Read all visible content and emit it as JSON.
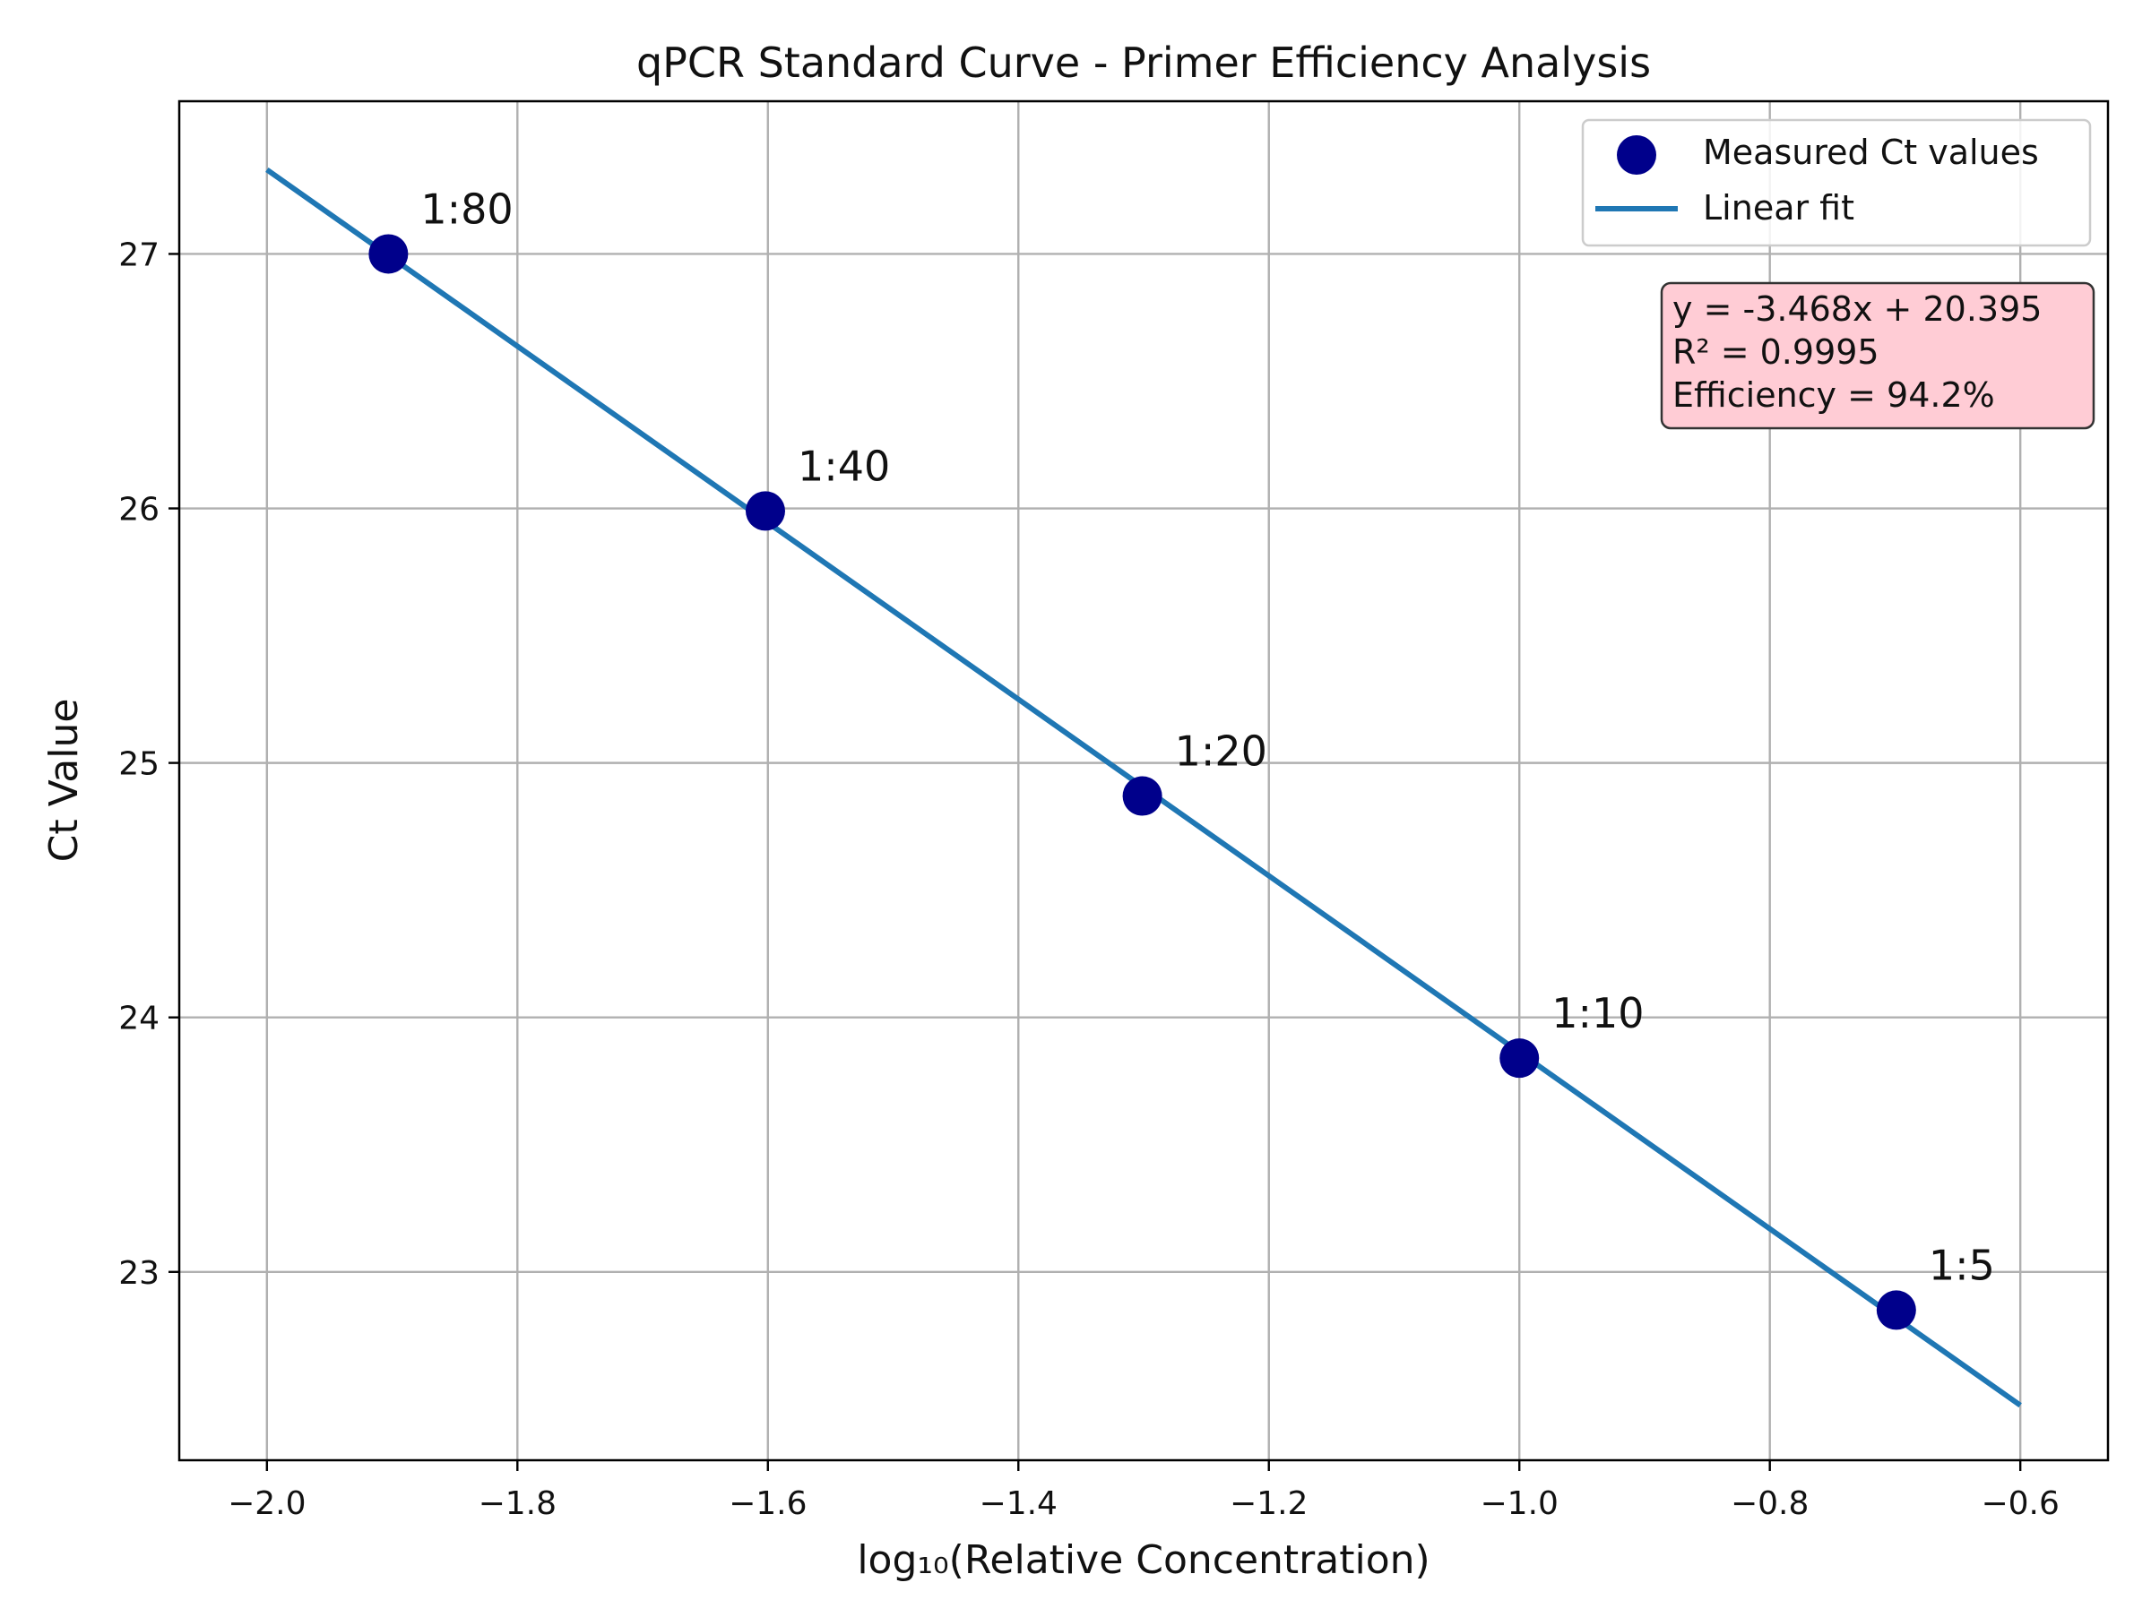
{
  "chart_data": {
    "type": "scatter",
    "title": "qPCR Standard Curve - Primer Efficiency Analysis",
    "xlabel": "log₁₀(Relative Concentration)",
    "ylabel": "Ct Value",
    "xlim": [
      -2.07,
      -0.53
    ],
    "ylim": [
      22.26,
      27.6
    ],
    "xticks": [
      -2.0,
      -1.8,
      -1.6,
      -1.4,
      -1.2,
      -1.0,
      -0.8,
      -0.6
    ],
    "xtick_labels": [
      "−2.0",
      "−1.8",
      "−1.6",
      "−1.4",
      "−1.2",
      "−1.0",
      "−0.8",
      "−0.6"
    ],
    "yticks": [
      23,
      24,
      25,
      26,
      27
    ],
    "ytick_labels": [
      "23",
      "24",
      "25",
      "26",
      "27"
    ],
    "grid": true,
    "legend_position": "top-right",
    "series": [
      {
        "name": "Measured Ct values",
        "kind": "scatter",
        "color": "#00008b",
        "x": [
          -1.903,
          -1.602,
          -1.301,
          -1.0,
          -0.699
        ],
        "y": [
          27.0,
          25.99,
          24.87,
          23.84,
          22.85
        ],
        "point_labels": [
          "1:80",
          "1:40",
          "1:20",
          "1:10",
          "1:5"
        ]
      },
      {
        "name": "Linear fit",
        "kind": "line",
        "color": "#1f77b4",
        "slope": -3.468,
        "intercept": 20.395,
        "x_range": [
          -2.0,
          -0.6
        ]
      }
    ],
    "annotation": {
      "lines": [
        "y = -3.468x + 20.395",
        "R² = 0.9995",
        "Efficiency = 94.2%"
      ],
      "position": "top-right",
      "background": "#ffccd5",
      "border": "#333333"
    }
  }
}
